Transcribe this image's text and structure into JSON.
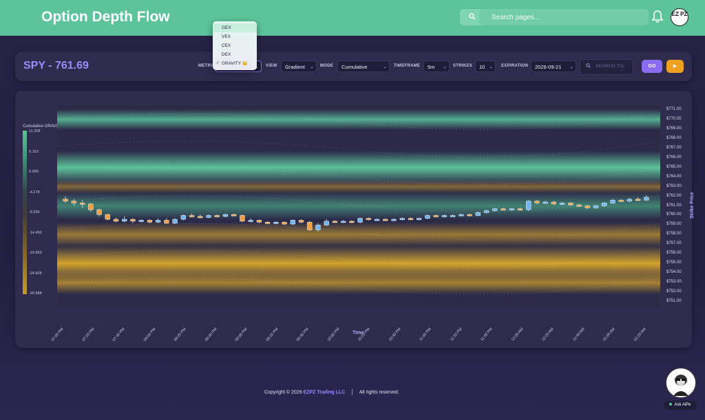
{
  "header": {
    "title": "Option Depth Flow",
    "search_placeholder": "Search pages...",
    "avatar_text": "EZ PZ"
  },
  "controls": {
    "ticker": "SPY - 761.69",
    "metric_label": "METRIC",
    "view_label": "VIEW",
    "view_value": "Gradient",
    "mode_label": "MODE",
    "mode_value": "Cumulative",
    "timeframe_label": "TIMEFRAME",
    "timeframe_value": "5m",
    "strikes_label": "STRIKES",
    "strikes_value": "10",
    "expiration_label": "EXPIRATION",
    "expiration_value": "2026-09-21",
    "ticker_search_placeholder": "SEARCH TIC",
    "go_label": "GO",
    "play_label": "▶"
  },
  "metric_dropdown": {
    "options": [
      "GEX",
      "VEX",
      "CEX",
      "DEX",
      "GRAVITY 👑"
    ],
    "selected": "GRAVITY 👑",
    "check": "✓"
  },
  "chart_data": {
    "type": "heatmap",
    "legend_title": "Cumulative GRAVITY",
    "colorbar_ticks": [
      "11.328",
      "6.163",
      "0.999",
      "-4.178",
      "-9.330",
      "-14.490",
      "-19.663",
      "-24.828",
      "-29.988"
    ],
    "xlabel": "Time",
    "ylabel": "Strike Price",
    "y_ticks": [
      "$771.00",
      "$770.00",
      "$769.00",
      "$768.00",
      "$767.00",
      "$766.00",
      "$765.00",
      "$764.00",
      "$763.00",
      "$762.00",
      "$761.00",
      "$760.00",
      "$759.00",
      "$758.00",
      "$757.00",
      "$756.00",
      "$755.00",
      "$754.00",
      "$753.00",
      "$752.00",
      "$751.00"
    ],
    "x_ticks": [
      "07:00 PM",
      "07:20 PM",
      "07:40 PM",
      "08:00 PM",
      "08:20 PM",
      "08:40 PM",
      "09:00 PM",
      "09:20 PM",
      "09:40 PM",
      "10:00 PM",
      "10:20 PM",
      "10:40 PM",
      "11:00 PM",
      "11:20 PM",
      "11:40 PM",
      "12:00 AM",
      "12:20 AM",
      "12:40 AM",
      "01:00 AM",
      "01:20 AM"
    ],
    "ylim": [
      750.5,
      771.5
    ],
    "bands": [
      {
        "strike": 770.0,
        "color": "#5cc39a",
        "intensity": 0.85
      },
      {
        "strike": 765.0,
        "color": "#5cc39a",
        "intensity": 1.0
      },
      {
        "strike": 763.0,
        "color": "#c99a2e",
        "intensity": 0.55
      },
      {
        "strike": 761.0,
        "color": "#4fb38c",
        "intensity": 0.65
      },
      {
        "strike": 758.0,
        "color": "#c99a2e",
        "intensity": 0.7
      },
      {
        "strike": 755.0,
        "color": "#d4a32c",
        "intensity": 1.0
      },
      {
        "strike": 753.0,
        "color": "#c99a2e",
        "intensity": 0.8
      }
    ],
    "candles": [
      {
        "o": 761.7,
        "c": 761.5,
        "h": 762.0,
        "l": 761.3
      },
      {
        "o": 761.5,
        "c": 761.3,
        "h": 761.7,
        "l": 761.0
      },
      {
        "o": 761.3,
        "c": 761.2,
        "h": 761.6,
        "l": 760.8
      },
      {
        "o": 761.2,
        "c": 760.6,
        "h": 761.3,
        "l": 760.4
      },
      {
        "o": 760.6,
        "c": 760.1,
        "h": 760.7,
        "l": 759.9
      },
      {
        "o": 760.1,
        "c": 759.6,
        "h": 760.2,
        "l": 759.5
      },
      {
        "o": 759.6,
        "c": 759.4,
        "h": 759.8,
        "l": 759.3
      },
      {
        "o": 759.4,
        "c": 759.6,
        "h": 759.9,
        "l": 759.3
      },
      {
        "o": 759.6,
        "c": 759.4,
        "h": 759.7,
        "l": 759.2
      },
      {
        "o": 759.4,
        "c": 759.5,
        "h": 759.6,
        "l": 759.3
      },
      {
        "o": 759.5,
        "c": 759.3,
        "h": 759.6,
        "l": 759.2
      },
      {
        "o": 759.3,
        "c": 759.5,
        "h": 759.7,
        "l": 759.2
      },
      {
        "o": 759.5,
        "c": 759.2,
        "h": 759.7,
        "l": 759.1
      },
      {
        "o": 759.2,
        "c": 759.6,
        "h": 759.7,
        "l": 759.1
      },
      {
        "o": 759.6,
        "c": 760.0,
        "h": 760.1,
        "l": 759.5
      },
      {
        "o": 760.0,
        "c": 759.9,
        "h": 760.2,
        "l": 759.8
      },
      {
        "o": 759.9,
        "c": 759.8,
        "h": 760.1,
        "l": 759.7
      },
      {
        "o": 759.8,
        "c": 760.0,
        "h": 760.1,
        "l": 759.7
      },
      {
        "o": 760.0,
        "c": 759.9,
        "h": 760.1,
        "l": 759.8
      },
      {
        "o": 759.9,
        "c": 760.1,
        "h": 760.2,
        "l": 759.8
      },
      {
        "o": 760.1,
        "c": 760.0,
        "h": 760.2,
        "l": 759.9
      },
      {
        "o": 760.0,
        "c": 759.4,
        "h": 760.1,
        "l": 759.3
      },
      {
        "o": 759.4,
        "c": 759.5,
        "h": 759.7,
        "l": 759.3
      },
      {
        "o": 759.5,
        "c": 759.3,
        "h": 759.6,
        "l": 759.2
      },
      {
        "o": 759.3,
        "c": 759.2,
        "h": 759.4,
        "l": 759.1
      },
      {
        "o": 759.2,
        "c": 759.3,
        "h": 759.4,
        "l": 759.1
      },
      {
        "o": 759.3,
        "c": 759.1,
        "h": 759.4,
        "l": 759.0
      },
      {
        "o": 759.1,
        "c": 759.5,
        "h": 759.6,
        "l": 759.0
      },
      {
        "o": 759.5,
        "c": 759.3,
        "h": 759.6,
        "l": 759.2
      },
      {
        "o": 759.3,
        "c": 758.5,
        "h": 759.4,
        "l": 758.4
      },
      {
        "o": 758.5,
        "c": 759.0,
        "h": 759.2,
        "l": 758.3
      },
      {
        "o": 759.0,
        "c": 759.4,
        "h": 759.6,
        "l": 758.9
      },
      {
        "o": 759.4,
        "c": 759.3,
        "h": 759.5,
        "l": 759.2
      },
      {
        "o": 759.3,
        "c": 759.4,
        "h": 759.5,
        "l": 759.2
      },
      {
        "o": 759.4,
        "c": 759.3,
        "h": 759.5,
        "l": 759.2
      },
      {
        "o": 759.3,
        "c": 759.7,
        "h": 759.8,
        "l": 759.2
      },
      {
        "o": 759.7,
        "c": 759.6,
        "h": 759.8,
        "l": 759.5
      },
      {
        "o": 759.6,
        "c": 759.6,
        "h": 759.7,
        "l": 759.5
      },
      {
        "o": 759.6,
        "c": 759.5,
        "h": 759.7,
        "l": 759.4
      },
      {
        "o": 759.5,
        "c": 759.6,
        "h": 759.7,
        "l": 759.4
      },
      {
        "o": 759.6,
        "c": 759.7,
        "h": 759.8,
        "l": 759.5
      },
      {
        "o": 759.7,
        "c": 759.6,
        "h": 759.8,
        "l": 759.5
      },
      {
        "o": 759.6,
        "c": 759.7,
        "h": 759.8,
        "l": 759.5
      },
      {
        "o": 759.7,
        "c": 760.0,
        "h": 760.1,
        "l": 759.6
      },
      {
        "o": 760.0,
        "c": 759.9,
        "h": 760.1,
        "l": 759.8
      },
      {
        "o": 759.9,
        "c": 760.0,
        "h": 760.1,
        "l": 759.8
      },
      {
        "o": 760.0,
        "c": 760.0,
        "h": 760.1,
        "l": 759.9
      },
      {
        "o": 760.0,
        "c": 760.1,
        "h": 760.2,
        "l": 759.9
      },
      {
        "o": 760.1,
        "c": 760.0,
        "h": 760.2,
        "l": 759.9
      },
      {
        "o": 760.0,
        "c": 760.3,
        "h": 760.4,
        "l": 759.9
      },
      {
        "o": 760.3,
        "c": 760.5,
        "h": 760.6,
        "l": 760.2
      },
      {
        "o": 760.5,
        "c": 760.7,
        "h": 760.8,
        "l": 760.4
      },
      {
        "o": 760.7,
        "c": 760.6,
        "h": 760.8,
        "l": 760.5
      },
      {
        "o": 760.6,
        "c": 760.7,
        "h": 760.8,
        "l": 760.5
      },
      {
        "o": 760.7,
        "c": 760.6,
        "h": 760.8,
        "l": 760.5
      },
      {
        "o": 760.6,
        "c": 761.5,
        "h": 761.6,
        "l": 760.5
      },
      {
        "o": 761.5,
        "c": 761.3,
        "h": 761.6,
        "l": 761.2
      },
      {
        "o": 761.3,
        "c": 761.4,
        "h": 761.5,
        "l": 761.2
      },
      {
        "o": 761.4,
        "c": 761.2,
        "h": 761.5,
        "l": 761.1
      },
      {
        "o": 761.2,
        "c": 761.3,
        "h": 761.4,
        "l": 761.1
      },
      {
        "o": 761.3,
        "c": 761.1,
        "h": 761.4,
        "l": 761.0
      },
      {
        "o": 761.1,
        "c": 761.0,
        "h": 761.2,
        "l": 760.9
      },
      {
        "o": 761.0,
        "c": 760.8,
        "h": 761.1,
        "l": 760.7
      },
      {
        "o": 760.8,
        "c": 761.0,
        "h": 761.1,
        "l": 760.7
      },
      {
        "o": 761.0,
        "c": 761.3,
        "h": 761.4,
        "l": 760.9
      },
      {
        "o": 761.3,
        "c": 761.6,
        "h": 761.7,
        "l": 761.2
      },
      {
        "o": 761.6,
        "c": 761.5,
        "h": 761.7,
        "l": 761.4
      },
      {
        "o": 761.5,
        "c": 761.7,
        "h": 761.8,
        "l": 761.4
      },
      {
        "o": 761.7,
        "c": 761.6,
        "h": 761.9,
        "l": 761.5
      },
      {
        "o": 761.6,
        "c": 761.9,
        "h": 762.1,
        "l": 761.5
      }
    ]
  },
  "footer": {
    "copyright": "Copyright ©",
    "year": "2026",
    "brand": "EZPZ Trading LLC",
    "rights": "All rights reserved."
  },
  "assistant": {
    "label": "Ask AiPe"
  },
  "colors": {
    "accent": "#5cc39a",
    "purple": "#8a6cf2",
    "orange": "#f0a020",
    "bull": "#6fb6f0",
    "bear": "#f0a040"
  }
}
